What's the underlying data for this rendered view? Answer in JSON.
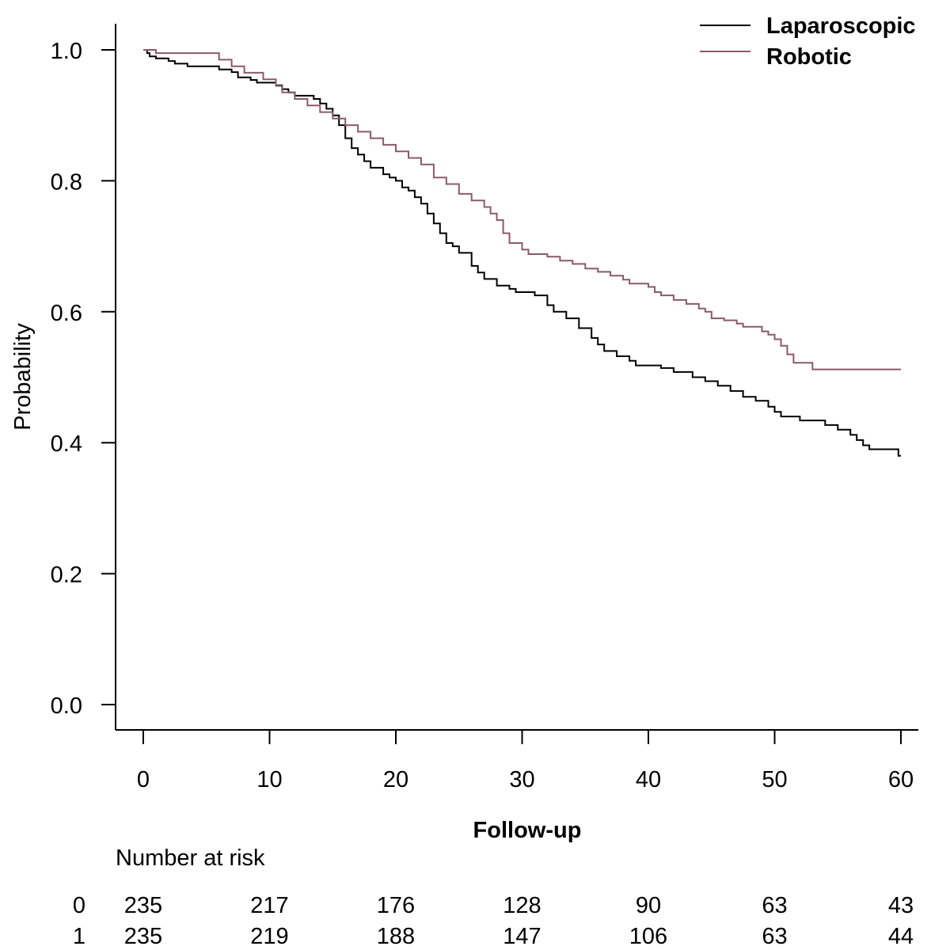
{
  "chart_data": {
    "type": "line",
    "step": true,
    "xlabel": "Follow-up",
    "ylabel": "Probability",
    "xlim": [
      0,
      60
    ],
    "ylim": [
      0,
      1
    ],
    "x_ticks": [
      "0",
      "10",
      "20",
      "30",
      "40",
      "50",
      "60"
    ],
    "y_ticks": [
      "0.0",
      "0.2",
      "0.4",
      "0.6",
      "0.8",
      "1.0"
    ],
    "grid": false,
    "legend_position": "top-right",
    "series": [
      {
        "name": "Laparoscopic",
        "color": "#000000",
        "points": [
          [
            0,
            1.0
          ],
          [
            0.3,
            0.995
          ],
          [
            0.5,
            0.99
          ],
          [
            1,
            0.987
          ],
          [
            2,
            0.983
          ],
          [
            2.5,
            0.979
          ],
          [
            3.5,
            0.975
          ],
          [
            6,
            0.97
          ],
          [
            7,
            0.966
          ],
          [
            7.5,
            0.958
          ],
          [
            8.5,
            0.954
          ],
          [
            9,
            0.95
          ],
          [
            10.5,
            0.946
          ],
          [
            11,
            0.94
          ],
          [
            11.5,
            0.935
          ],
          [
            12,
            0.93
          ],
          [
            13.5,
            0.925
          ],
          [
            14,
            0.918
          ],
          [
            14.5,
            0.91
          ],
          [
            15,
            0.9
          ],
          [
            15.5,
            0.885
          ],
          [
            16,
            0.865
          ],
          [
            16.5,
            0.85
          ],
          [
            17,
            0.84
          ],
          [
            17.5,
            0.83
          ],
          [
            18,
            0.82
          ],
          [
            19,
            0.81
          ],
          [
            19.5,
            0.805
          ],
          [
            20,
            0.8
          ],
          [
            20.5,
            0.79
          ],
          [
            21,
            0.785
          ],
          [
            21.5,
            0.775
          ],
          [
            22,
            0.765
          ],
          [
            22.5,
            0.75
          ],
          [
            23,
            0.735
          ],
          [
            23.5,
            0.72
          ],
          [
            24,
            0.705
          ],
          [
            24.5,
            0.7
          ],
          [
            25,
            0.69
          ],
          [
            26,
            0.67
          ],
          [
            26.5,
            0.66
          ],
          [
            27,
            0.65
          ],
          [
            28,
            0.64
          ],
          [
            29,
            0.635
          ],
          [
            29.5,
            0.63
          ],
          [
            31,
            0.625
          ],
          [
            32,
            0.61
          ],
          [
            32.5,
            0.6
          ],
          [
            33.5,
            0.59
          ],
          [
            34.5,
            0.575
          ],
          [
            35.5,
            0.56
          ],
          [
            36,
            0.55
          ],
          [
            36.5,
            0.54
          ],
          [
            37.5,
            0.532
          ],
          [
            38.5,
            0.525
          ],
          [
            39,
            0.518
          ],
          [
            41,
            0.514
          ],
          [
            42,
            0.508
          ],
          [
            43.5,
            0.5
          ],
          [
            44.5,
            0.494
          ],
          [
            45.5,
            0.487
          ],
          [
            46.5,
            0.479
          ],
          [
            47.5,
            0.47
          ],
          [
            48.5,
            0.464
          ],
          [
            49.5,
            0.455
          ],
          [
            50,
            0.447
          ],
          [
            50.5,
            0.44
          ],
          [
            52,
            0.434
          ],
          [
            54,
            0.427
          ],
          [
            55,
            0.42
          ],
          [
            56,
            0.412
          ],
          [
            56.5,
            0.404
          ],
          [
            57,
            0.396
          ],
          [
            57.5,
            0.39
          ],
          [
            59.8,
            0.38
          ],
          [
            60,
            0.38
          ]
        ]
      },
      {
        "name": "Robotic",
        "color": "#8b5a68",
        "points": [
          [
            0,
            1.0
          ],
          [
            1,
            0.995
          ],
          [
            6,
            0.985
          ],
          [
            7,
            0.975
          ],
          [
            8,
            0.965
          ],
          [
            9.5,
            0.955
          ],
          [
            10.5,
            0.945
          ],
          [
            11,
            0.935
          ],
          [
            12,
            0.925
          ],
          [
            13,
            0.915
          ],
          [
            14,
            0.905
          ],
          [
            15,
            0.895
          ],
          [
            16,
            0.885
          ],
          [
            17,
            0.875
          ],
          [
            18,
            0.865
          ],
          [
            19,
            0.855
          ],
          [
            20,
            0.845
          ],
          [
            21,
            0.835
          ],
          [
            22,
            0.825
          ],
          [
            23,
            0.805
          ],
          [
            24,
            0.795
          ],
          [
            25,
            0.78
          ],
          [
            26,
            0.77
          ],
          [
            27,
            0.76
          ],
          [
            27.5,
            0.75
          ],
          [
            28,
            0.74
          ],
          [
            28.5,
            0.72
          ],
          [
            29,
            0.705
          ],
          [
            30,
            0.695
          ],
          [
            30.5,
            0.688
          ],
          [
            32,
            0.684
          ],
          [
            33,
            0.678
          ],
          [
            34,
            0.673
          ],
          [
            35,
            0.666
          ],
          [
            36,
            0.661
          ],
          [
            37,
            0.655
          ],
          [
            38,
            0.649
          ],
          [
            38.5,
            0.643
          ],
          [
            40,
            0.638
          ],
          [
            40.5,
            0.63
          ],
          [
            41,
            0.625
          ],
          [
            42,
            0.618
          ],
          [
            43,
            0.612
          ],
          [
            44,
            0.605
          ],
          [
            44.5,
            0.6
          ],
          [
            45,
            0.59
          ],
          [
            46,
            0.587
          ],
          [
            47,
            0.582
          ],
          [
            47.5,
            0.577
          ],
          [
            49,
            0.57
          ],
          [
            49.5,
            0.565
          ],
          [
            50,
            0.558
          ],
          [
            50.5,
            0.548
          ],
          [
            51,
            0.535
          ],
          [
            51.5,
            0.522
          ],
          [
            53,
            0.512
          ],
          [
            60,
            0.512
          ]
        ]
      }
    ],
    "number_at_risk": {
      "title": "Number at risk",
      "rows": [
        {
          "group": "0",
          "values": [
            "235",
            "217",
            "176",
            "128",
            "90",
            "63",
            "43"
          ]
        },
        {
          "group": "1",
          "values": [
            "235",
            "219",
            "188",
            "147",
            "106",
            "63",
            "44"
          ]
        }
      ]
    }
  }
}
